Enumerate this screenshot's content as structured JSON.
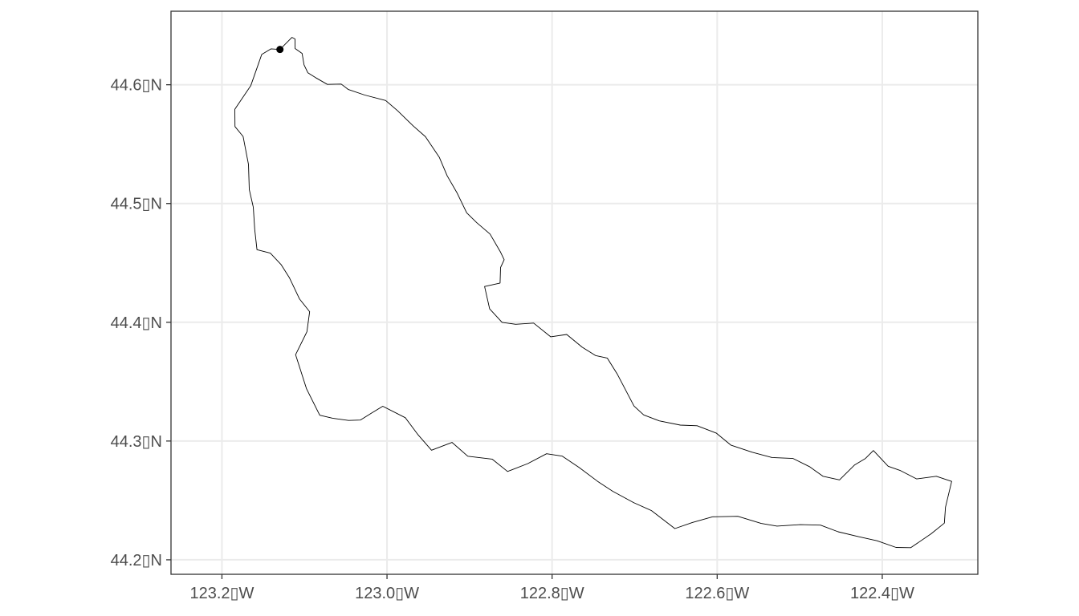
{
  "map": {
    "x_axis": {
      "range": [
        -123.2617,
        -122.2842
      ],
      "ticks": [
        {
          "value": -123.2,
          "label": "123.2▯W"
        },
        {
          "value": -123.0,
          "label": "123.0▯W"
        },
        {
          "value": -122.8,
          "label": "122.8▯W"
        },
        {
          "value": -122.6,
          "label": "122.6▯W"
        },
        {
          "value": -122.4,
          "label": "122.4▯W"
        }
      ]
    },
    "y_axis": {
      "range": [
        44.1878,
        44.6619
      ],
      "ticks": [
        {
          "value": 44.2,
          "label": "44.2▯N"
        },
        {
          "value": 44.3,
          "label": "44.3▯N"
        },
        {
          "value": 44.4,
          "label": "44.4▯N"
        },
        {
          "value": 44.5,
          "label": "44.5▯N"
        },
        {
          "value": 44.6,
          "label": "44.6▯N"
        }
      ]
    },
    "grid": true,
    "colors": {
      "background": "#ffffff",
      "grid": "#ebebeb",
      "outline": "#000000",
      "panel_border": "#333333",
      "tick_label": "#4d4d4d"
    },
    "point": {
      "lon": -123.1297,
      "lat": 44.6297
    },
    "boundary": [
      [
        -123.1297,
        44.6297
      ],
      [
        -123.1151,
        44.6399
      ],
      [
        -123.1114,
        44.6385
      ],
      [
        -123.1113,
        44.6305
      ],
      [
        -123.1029,
        44.6264
      ],
      [
        -123.1005,
        44.6168
      ],
      [
        -123.0959,
        44.61
      ],
      [
        -123.0865,
        44.606
      ],
      [
        -123.0723,
        44.6003
      ],
      [
        -123.0555,
        44.6006
      ],
      [
        -123.0468,
        44.596
      ],
      [
        -123.027,
        44.5913
      ],
      [
        -123.0016,
        44.5867
      ],
      [
        -122.987,
        44.578
      ],
      [
        -122.9681,
        44.5652
      ],
      [
        -122.9535,
        44.5563
      ],
      [
        -122.9365,
        44.5388
      ],
      [
        -122.9271,
        44.5233
      ],
      [
        -122.9153,
        44.5092
      ],
      [
        -122.9035,
        44.4922
      ],
      [
        -122.8912,
        44.4838
      ],
      [
        -122.8752,
        44.4743
      ],
      [
        -122.8624,
        44.459
      ],
      [
        -122.8581,
        44.4527
      ],
      [
        -122.8624,
        44.4461
      ],
      [
        -122.863,
        44.433
      ],
      [
        -122.8818,
        44.4301
      ],
      [
        -122.8757,
        44.4113
      ],
      [
        -122.8606,
        44.3999
      ],
      [
        -122.8441,
        44.3983
      ],
      [
        -122.8224,
        44.3993
      ],
      [
        -122.8017,
        44.3878
      ],
      [
        -122.7823,
        44.3897
      ],
      [
        -122.7635,
        44.379
      ],
      [
        -122.7474,
        44.372
      ],
      [
        -122.7332,
        44.3699
      ],
      [
        -122.7208,
        44.3561
      ],
      [
        -122.7008,
        44.3295
      ],
      [
        -122.689,
        44.322
      ],
      [
        -122.6702,
        44.317
      ],
      [
        -122.6447,
        44.3134
      ],
      [
        -122.6242,
        44.3129
      ],
      [
        -122.6009,
        44.3066
      ],
      [
        -122.5835,
        44.2966
      ],
      [
        -122.5576,
        44.2906
      ],
      [
        -122.5336,
        44.2861
      ],
      [
        -122.5081,
        44.2853
      ],
      [
        -122.4882,
        44.2784
      ],
      [
        -122.4718,
        44.2703
      ],
      [
        -122.4518,
        44.2673
      ],
      [
        -122.4334,
        44.2799
      ],
      [
        -122.4204,
        44.2853
      ],
      [
        -122.4107,
        44.292
      ],
      [
        -122.3928,
        44.2788
      ],
      [
        -122.3786,
        44.2753
      ],
      [
        -122.3583,
        44.2681
      ],
      [
        -122.3345,
        44.2703
      ],
      [
        -122.3159,
        44.266
      ],
      [
        -122.3234,
        44.2443
      ],
      [
        -122.3248,
        44.2309
      ],
      [
        -122.3408,
        44.2219
      ],
      [
        -122.3654,
        44.2102
      ],
      [
        -122.3833,
        44.2104
      ],
      [
        -122.4064,
        44.216
      ],
      [
        -122.4282,
        44.2194
      ],
      [
        -122.4534,
        44.2236
      ],
      [
        -122.4748,
        44.2292
      ],
      [
        -122.4993,
        44.2296
      ],
      [
        -122.5276,
        44.2284
      ],
      [
        -122.5467,
        44.2306
      ],
      [
        -122.575,
        44.2366
      ],
      [
        -122.6056,
        44.2362
      ],
      [
        -122.6301,
        44.2314
      ],
      [
        -122.6513,
        44.2263
      ],
      [
        -122.6796,
        44.2414
      ],
      [
        -122.7013,
        44.2482
      ],
      [
        -122.7266,
        44.2577
      ],
      [
        -122.7447,
        44.266
      ],
      [
        -122.7672,
        44.2777
      ],
      [
        -122.7876,
        44.2873
      ],
      [
        -122.8067,
        44.2893
      ],
      [
        -122.8295,
        44.281
      ],
      [
        -122.854,
        44.2744
      ],
      [
        -122.8726,
        44.2848
      ],
      [
        -122.9021,
        44.2872
      ],
      [
        -122.9212,
        44.2988
      ],
      [
        -122.9461,
        44.2923
      ],
      [
        -122.9629,
        44.3057
      ],
      [
        -122.9778,
        44.3196
      ],
      [
        -123.0051,
        44.3293
      ],
      [
        -123.0182,
        44.3238
      ],
      [
        -123.0324,
        44.3177
      ],
      [
        -123.0466,
        44.3173
      ],
      [
        -123.0659,
        44.3192
      ],
      [
        -123.0815,
        44.3217
      ],
      [
        -123.0975,
        44.344
      ],
      [
        -123.1107,
        44.3727
      ],
      [
        -123.097,
        44.392
      ],
      [
        -123.0937,
        44.4089
      ],
      [
        -123.1061,
        44.4197
      ],
      [
        -123.1183,
        44.4376
      ],
      [
        -123.1282,
        44.4484
      ],
      [
        -123.1414,
        44.4582
      ],
      [
        -123.1575,
        44.4611
      ],
      [
        -123.1603,
        44.4781
      ],
      [
        -123.162,
        44.4969
      ],
      [
        -123.1669,
        44.5118
      ],
      [
        -123.1678,
        44.533
      ],
      [
        -123.1744,
        44.5565
      ],
      [
        -123.1842,
        44.5648
      ],
      [
        -123.1844,
        44.5794
      ],
      [
        -123.165,
        44.5993
      ],
      [
        -123.156,
        44.6172
      ],
      [
        -123.1518,
        44.6255
      ],
      [
        -123.1405,
        44.6302
      ],
      [
        -123.1297,
        44.6297
      ]
    ]
  }
}
